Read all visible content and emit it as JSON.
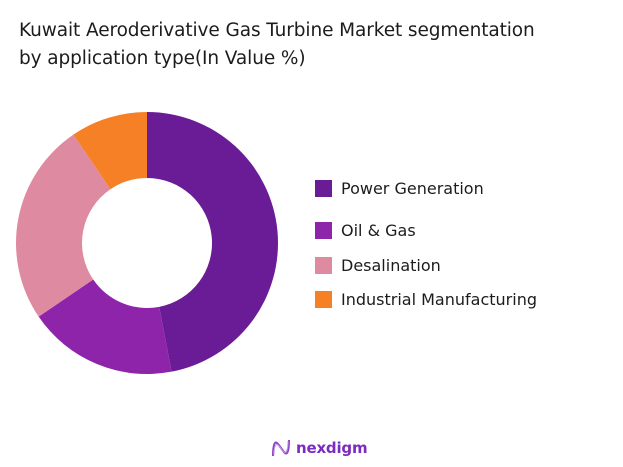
{
  "title": {
    "line1": "Kuwait Aeroderivative Gas Turbine Market segmentation",
    "line2": "by application type(In Value %)"
  },
  "legend": {
    "items": [
      {
        "label": "Power Generation",
        "color": "#6a1b96"
      },
      {
        "label": "Oil & Gas",
        "color": "#8e24aa"
      },
      {
        "label": "Desalination",
        "color": "#de8aa0"
      },
      {
        "label": "Industrial Manufacturing",
        "color": "#f58025"
      }
    ]
  },
  "brand": {
    "name": "nexdigm"
  },
  "chart_data": {
    "type": "pie",
    "subtype": "donut",
    "title": "Kuwait Aeroderivative Gas Turbine Market segmentation by application type(In Value %)",
    "categories": [
      "Power Generation",
      "Oil & Gas",
      "Desalination",
      "Industrial Manufacturing"
    ],
    "values": [
      47,
      18.5,
      25,
      9.5
    ],
    "colors": [
      "#6a1b96",
      "#8e24aa",
      "#de8aa0",
      "#f58025"
    ],
    "start_angle_deg": 0,
    "direction": "clockwise",
    "legend_position": "right",
    "data_labels": false
  }
}
